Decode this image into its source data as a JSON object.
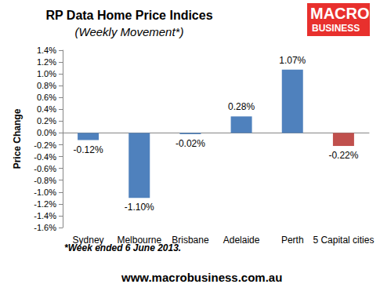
{
  "chart_data": {
    "type": "bar",
    "title": "RP Data Home Price Indices",
    "subtitle": "(Weekly Movement*)",
    "y_label": "Price Change",
    "categories": [
      "Sydney",
      "Melbourne",
      "Brisbane",
      "Adelaide",
      "Perth",
      "5 Capital cities"
    ],
    "values": [
      -0.12,
      -1.1,
      -0.02,
      0.28,
      1.07,
      -0.22
    ],
    "value_labels": [
      "-0.12%",
      "-1.10%",
      "-0.02%",
      "0.28%",
      "1.07%",
      "-0.22%"
    ],
    "colors": [
      "#4f81bd",
      "#4f81bd",
      "#4f81bd",
      "#4f81bd",
      "#4f81bd",
      "#c0504d"
    ],
    "ylim": [
      -1.6,
      1.4
    ],
    "yticks": [
      {
        "value": -1.6,
        "label": "-1.6%"
      },
      {
        "value": -1.4,
        "label": "-1.4%"
      },
      {
        "value": -1.2,
        "label": "-1.2%"
      },
      {
        "value": -1.0,
        "label": "-1.0%"
      },
      {
        "value": -0.8,
        "label": "-0.8%"
      },
      {
        "value": -0.6,
        "label": "-0.6%"
      },
      {
        "value": -0.4,
        "label": "-0.4%"
      },
      {
        "value": -0.2,
        "label": "-0.2%"
      },
      {
        "value": 0.0,
        "label": "0.0%"
      },
      {
        "value": 0.2,
        "label": "0.2%"
      },
      {
        "value": 0.4,
        "label": "0.4%"
      },
      {
        "value": 0.6,
        "label": "0.6%"
      },
      {
        "value": 0.8,
        "label": "0.8%"
      },
      {
        "value": 1.0,
        "label": "1.0%"
      },
      {
        "value": 1.2,
        "label": "1.2%"
      },
      {
        "value": 1.4,
        "label": "1.4%"
      }
    ],
    "grid": false,
    "data_labels": true,
    "footnote": "*Week ended 6 June 2013.",
    "source": "www.macrobusiness.com.au",
    "logo": [
      "MACRO",
      "BUSINESS"
    ]
  }
}
